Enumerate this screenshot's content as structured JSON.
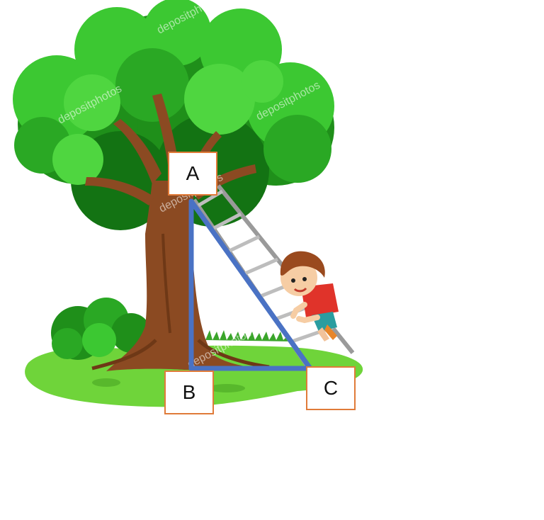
{
  "labels": {
    "a": "A",
    "b": "B",
    "c": "C"
  },
  "watermark": "depositphotos",
  "colors": {
    "triangle_stroke": "#4a72c4",
    "label_border": "#e07b39",
    "foliage_light": "#3cc832",
    "foliage_dark": "#1f8f1a",
    "trunk": "#8b4a22",
    "grass": "#6fd43a"
  }
}
